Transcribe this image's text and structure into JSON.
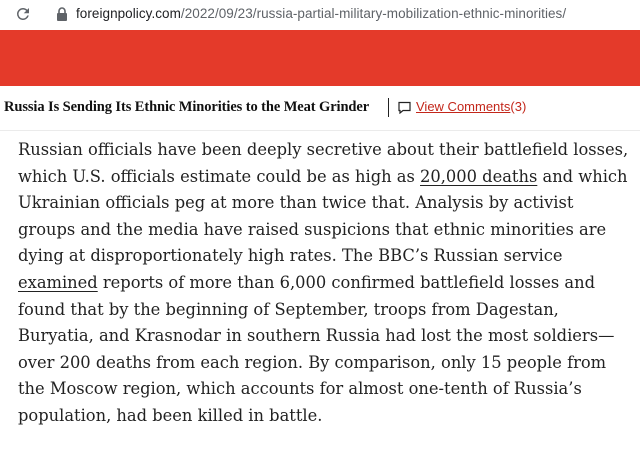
{
  "browser": {
    "url_domain": "foreignpolicy.com",
    "url_path": "/2022/09/23/russia-partial-military-mobilization-ethnic-minorities/"
  },
  "header": {
    "headline": "Russia Is Sending Its Ethnic Minorities to the Meat Grinder",
    "comments_label": "View Comments",
    "comments_count": "(3)"
  },
  "article": {
    "seg1": "Russian officials have been deeply secretive about their battlefield losses, which U.S. officials estimate could be as high as ",
    "link1": "20,000 deaths",
    "seg2": " and which Ukrainian officials peg at more than twice that. Analysis by activist groups and the media have raised suspicions that ethnic minorities are dying at disproportionately high rates. The BBC’s Russian service ",
    "link2": "examined",
    "seg3": " reports of more than 6,000 confirmed battlefield losses and found that by the beginning of September, troops from Dagestan, Buryatia, and Krasnodar in southern Russia had lost the most soldiers—over 200 deaths from each region. By comparison, only 15 people from the Moscow region, which accounts for almost one-tenth of Russia’s population, had been killed in battle."
  },
  "colors": {
    "banner": "#e43a2a",
    "comments_link": "#c3271b",
    "body_text": "#222222"
  },
  "icons": [
    "reload-icon",
    "lock-icon",
    "comment-icon"
  ]
}
